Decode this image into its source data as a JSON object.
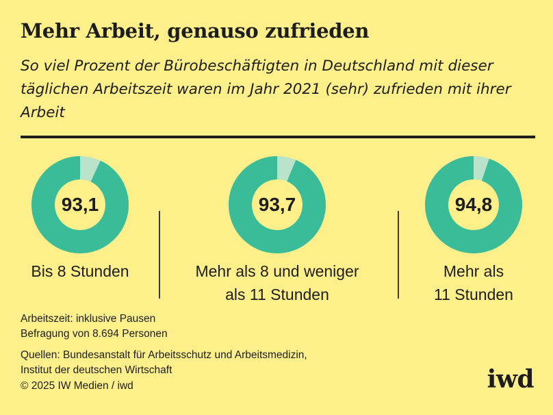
{
  "header": {
    "title": "Mehr Arbeit, genauso zufrieden",
    "subtitle": "So viel Prozent der Bürobeschäftigten in Deutschland mit dieser täglichen Arbeitszeit waren im Jahr 2021 (sehr) zufrieden mit ihrer Arbeit"
  },
  "colors": {
    "background": "#fdf08a",
    "filled": "#3bbc98",
    "remainder": "#b9e3cb",
    "center": "#fdf08a"
  },
  "chart_data": {
    "type": "pie",
    "categories": [
      "Bis 8 Stunden",
      "Mehr als 8 und weniger als 11 Stunden",
      "Mehr als 11 Stunden"
    ],
    "values": [
      93.1,
      93.7,
      94.8
    ],
    "value_labels": [
      "93,1",
      "93,7",
      "94,8"
    ],
    "max": 100,
    "unit": "Prozent"
  },
  "labels": {
    "cat1": "Bis 8 Stunden",
    "cat2_line1": "Mehr als 8 und weniger",
    "cat2_line2": "als 11 Stunden",
    "cat3_line1": "Mehr als",
    "cat3_line2": "11 Stunden"
  },
  "footer": {
    "note1": "Arbeitszeit: inklusive Pausen",
    "note2": "Befragung von 8.694 Personen",
    "source1": "Quellen: Bundesanstalt für Arbeitsschutz und Arbeitsmedizin,",
    "source2": "Institut der deutschen Wirtschaft",
    "copyright": "© 2025 IW Medien / iwd",
    "logo": "iwd"
  }
}
